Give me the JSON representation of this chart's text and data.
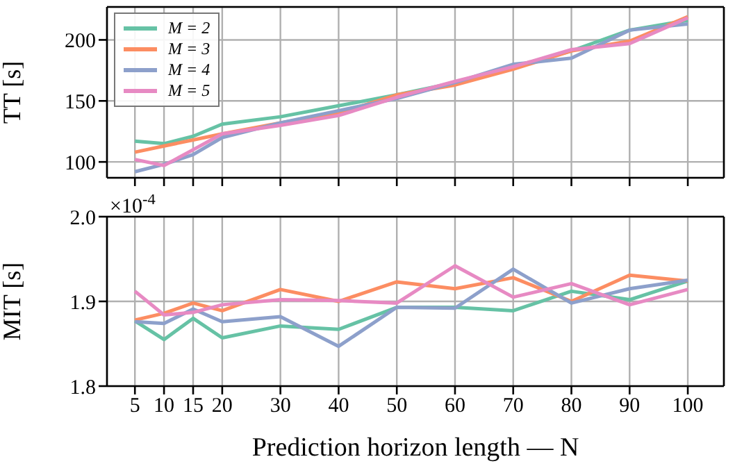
{
  "chart_data": [
    {
      "type": "line",
      "ylabel": "TT [s]",
      "x": [
        5,
        10,
        15,
        20,
        30,
        40,
        50,
        60,
        70,
        80,
        90,
        100
      ],
      "xlim": [
        0.2,
        106.2
      ],
      "xticks": [
        5,
        10,
        15,
        20,
        30,
        40,
        50,
        60,
        70,
        80,
        90,
        100
      ],
      "ylim": [
        87,
        227
      ],
      "yticks": [
        100,
        150,
        200
      ],
      "grid": true,
      "legend": "top left",
      "tick_labels": "y",
      "series": [
        {
          "name": "M = 2",
          "color": "#66c2a5",
          "values": [
            117,
            115,
            121,
            131,
            137,
            146,
            155,
            165,
            178,
            191,
            208,
            216
          ]
        },
        {
          "name": "M = 3",
          "color": "#fc8d62",
          "values": [
            108,
            113,
            118,
            123,
            132,
            140,
            155,
            163,
            176,
            191,
            199,
            219
          ]
        },
        {
          "name": "M = 4",
          "color": "#8da0cb",
          "values": [
            92,
            98,
            106,
            120,
            132,
            142,
            152,
            165,
            180,
            185,
            208,
            213
          ]
        },
        {
          "name": "M = 5",
          "color": "#e78ac3",
          "values": [
            102,
            97,
            110,
            123,
            130,
            138,
            153,
            166,
            178,
            192,
            197,
            218
          ]
        }
      ]
    },
    {
      "type": "line",
      "ylabel": "MIT [s]",
      "xlabel": "Prediction horizon length — N",
      "annotations": [
        "×10$^{-4}$"
      ],
      "x": [
        5,
        10,
        15,
        20,
        30,
        40,
        50,
        60,
        70,
        80,
        90,
        100
      ],
      "xlim": [
        0.2,
        106.2
      ],
      "xticks": [
        5,
        10,
        15,
        20,
        30,
        40,
        50,
        60,
        70,
        80,
        90,
        100
      ],
      "ylim": [
        1.8,
        2.0
      ],
      "yticks": [
        1.8,
        1.9,
        {
          "value": 2.0,
          "label": "2.0"
        }
      ],
      "grid": true,
      "series": [
        {
          "color": "#66c2a5",
          "values": [
            1.877,
            1.855,
            1.88,
            1.857,
            1.871,
            1.867,
            1.893,
            1.893,
            1.889,
            1.912,
            1.902,
            1.924
          ]
        },
        {
          "color": "#fc8d62",
          "values": [
            1.878,
            1.886,
            1.898,
            1.889,
            1.914,
            1.9,
            1.923,
            1.915,
            1.928,
            1.9,
            1.931,
            1.924
          ]
        },
        {
          "color": "#8da0cb",
          "values": [
            1.876,
            1.874,
            1.891,
            1.876,
            1.882,
            1.847,
            1.893,
            1.892,
            1.938,
            1.898,
            1.915,
            1.925
          ]
        },
        {
          "color": "#e78ac3",
          "values": [
            1.912,
            1.884,
            1.887,
            1.896,
            1.902,
            1.901,
            1.898,
            1.942,
            1.905,
            1.921,
            1.896,
            1.914
          ]
        }
      ]
    }
  ]
}
